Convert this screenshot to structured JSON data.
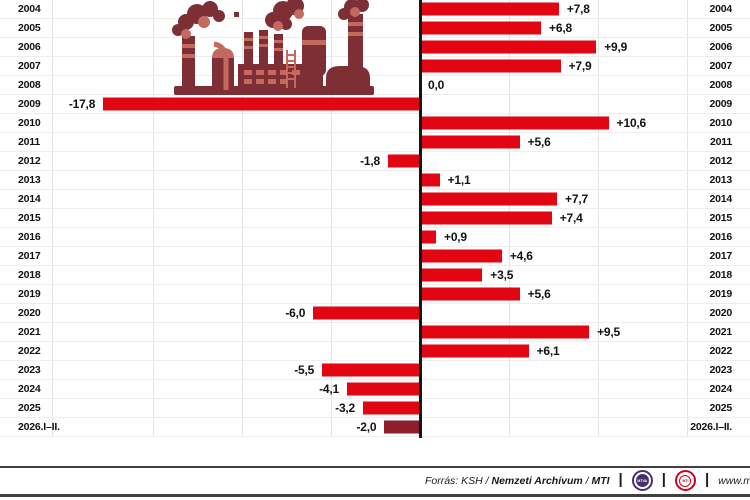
{
  "chart_data": {
    "type": "bar",
    "orientation": "horizontal",
    "title": "",
    "categories": [
      "2004",
      "2005",
      "2006",
      "2007",
      "2008",
      "2009",
      "2010",
      "2011",
      "2012",
      "2013",
      "2014",
      "2015",
      "2016",
      "2017",
      "2018",
      "2019",
      "2020",
      "2021",
      "2022",
      "2023",
      "2024",
      "2025",
      "2026.I–II."
    ],
    "values": [
      7.8,
      6.8,
      9.9,
      7.9,
      0.0,
      -17.8,
      10.6,
      5.6,
      -1.8,
      1.1,
      7.7,
      7.4,
      0.9,
      4.6,
      3.5,
      5.6,
      -6.0,
      9.5,
      6.1,
      -5.5,
      -4.1,
      -3.2,
      -2.0
    ],
    "value_labels": [
      "+7,8",
      "+6,8",
      "+9,9",
      "+7,9",
      "0,0",
      "-17,8",
      "+10,6",
      "+5,6",
      "-1,8",
      "+1,1",
      "+7,7",
      "+7,4",
      "+0,9",
      "+4,6",
      "+3,5",
      "+5,6",
      "-6,0",
      "+9,5",
      "+6,1",
      "-5,5",
      "-4,1",
      "-3,2",
      "-2,0"
    ],
    "axis": {
      "min": -20,
      "max": 18.5,
      "gridline_step": 5,
      "zero_axis": true
    },
    "grid": "on",
    "legend": "none",
    "year_labels_position": "both-sides",
    "bar_color": "#e20613",
    "final_bar_color": "#8e1e2d",
    "illustration": "factory-smokestacks-icon"
  },
  "footer": {
    "source_prefix": "Forrás: KSH /",
    "source_archive": "Nemzeti Archívum",
    "source_divider": "/",
    "source_agency": "MTI",
    "separator": "|",
    "logo_mtva": "MTVA",
    "logo_mti": "MTI",
    "website_text": "www.m"
  },
  "colors": {
    "bar": "#e20613",
    "final_bar": "#8e1e2d",
    "axis_line": "#161616",
    "gridline": "#e6e3e3",
    "factory_dark": "#7d2f35",
    "factory_light": "#c4695e",
    "footer_line": "#413f3f",
    "mtva_ring": "#46316e",
    "mti_ring": "#d6001c"
  }
}
